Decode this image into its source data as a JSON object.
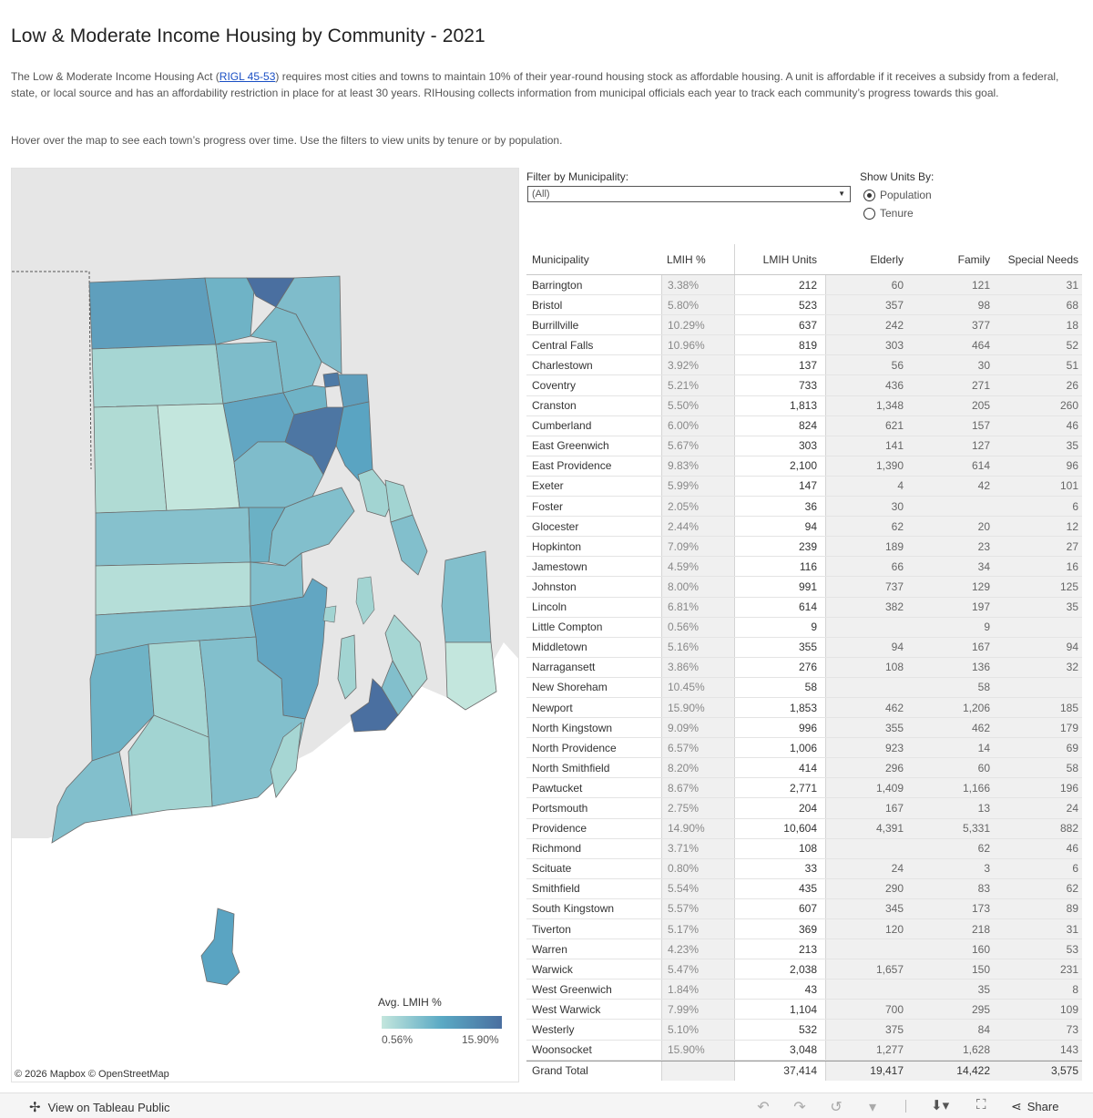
{
  "header": {
    "title": "Low & Moderate Income Housing by Community - 2021",
    "desc_before": "The Low & Moderate Income Housing Act (",
    "desc_link": "RIGL 45-53",
    "desc_after": ") requires most cities and towns to maintain 10% of their year-round housing stock as affordable housing. A unit is affordable if it receives a subsidy from a federal, state, or local source and has an affordability restriction in place for at least 30 years. RIHousing collects information from municipal officials each year to track each community’s progress towards this goal.",
    "hint": "Hover over the map to see each town’s progress over time. Use the filters to view units by tenure or by population."
  },
  "map": {
    "attribution": "© 2026 Mapbox  © OpenStreetMap",
    "legend_title": "Avg. LMIH %",
    "legend_min": "0.56%",
    "legend_max": "15.90%",
    "colors": {
      "low": "#c3e6dd",
      "mid": "#6fb6c9",
      "high": "#4a6fa0"
    }
  },
  "filters": {
    "municipality_label": "Filter by Municipality:",
    "municipality_value": "(All)",
    "units_label": "Show Units By:",
    "options": [
      {
        "label": "Population",
        "selected": true
      },
      {
        "label": "Tenure",
        "selected": false
      }
    ]
  },
  "table": {
    "columns": [
      "Municipality",
      "LMIH %",
      "LMIH Units",
      "Elderly",
      "Family",
      "Special Needs"
    ],
    "rows": [
      [
        "Barrington",
        "3.38%",
        "212",
        "60",
        "121",
        "31"
      ],
      [
        "Bristol",
        "5.80%",
        "523",
        "357",
        "98",
        "68"
      ],
      [
        "Burrillville",
        "10.29%",
        "637",
        "242",
        "377",
        "18"
      ],
      [
        "Central Falls",
        "10.96%",
        "819",
        "303",
        "464",
        "52"
      ],
      [
        "Charlestown",
        "3.92%",
        "137",
        "56",
        "30",
        "51"
      ],
      [
        "Coventry",
        "5.21%",
        "733",
        "436",
        "271",
        "26"
      ],
      [
        "Cranston",
        "5.50%",
        "1,813",
        "1,348",
        "205",
        "260"
      ],
      [
        "Cumberland",
        "6.00%",
        "824",
        "621",
        "157",
        "46"
      ],
      [
        "East Greenwich",
        "5.67%",
        "303",
        "141",
        "127",
        "35"
      ],
      [
        "East Providence",
        "9.83%",
        "2,100",
        "1,390",
        "614",
        "96"
      ],
      [
        "Exeter",
        "5.99%",
        "147",
        "4",
        "42",
        "101"
      ],
      [
        "Foster",
        "2.05%",
        "36",
        "30",
        "",
        "6"
      ],
      [
        "Glocester",
        "2.44%",
        "94",
        "62",
        "20",
        "12"
      ],
      [
        "Hopkinton",
        "7.09%",
        "239",
        "189",
        "23",
        "27"
      ],
      [
        "Jamestown",
        "4.59%",
        "116",
        "66",
        "34",
        "16"
      ],
      [
        "Johnston",
        "8.00%",
        "991",
        "737",
        "129",
        "125"
      ],
      [
        "Lincoln",
        "6.81%",
        "614",
        "382",
        "197",
        "35"
      ],
      [
        "Little Compton",
        "0.56%",
        "9",
        "",
        "9",
        ""
      ],
      [
        "Middletown",
        "5.16%",
        "355",
        "94",
        "167",
        "94"
      ],
      [
        "Narragansett",
        "3.86%",
        "276",
        "108",
        "136",
        "32"
      ],
      [
        "New Shoreham",
        "10.45%",
        "58",
        "",
        "58",
        ""
      ],
      [
        "Newport",
        "15.90%",
        "1,853",
        "462",
        "1,206",
        "185"
      ],
      [
        "North Kingstown",
        "9.09%",
        "996",
        "355",
        "462",
        "179"
      ],
      [
        "North Providence",
        "6.57%",
        "1,006",
        "923",
        "14",
        "69"
      ],
      [
        "North Smithfield",
        "8.20%",
        "414",
        "296",
        "60",
        "58"
      ],
      [
        "Pawtucket",
        "8.67%",
        "2,771",
        "1,409",
        "1,166",
        "196"
      ],
      [
        "Portsmouth",
        "2.75%",
        "204",
        "167",
        "13",
        "24"
      ],
      [
        "Providence",
        "14.90%",
        "10,604",
        "4,391",
        "5,331",
        "882"
      ],
      [
        "Richmond",
        "3.71%",
        "108",
        "",
        "62",
        "46"
      ],
      [
        "Scituate",
        "0.80%",
        "33",
        "24",
        "3",
        "6"
      ],
      [
        "Smithfield",
        "5.54%",
        "435",
        "290",
        "83",
        "62"
      ],
      [
        "South Kingstown",
        "5.57%",
        "607",
        "345",
        "173",
        "89"
      ],
      [
        "Tiverton",
        "5.17%",
        "369",
        "120",
        "218",
        "31"
      ],
      [
        "Warren",
        "4.23%",
        "213",
        "",
        "160",
        "53"
      ],
      [
        "Warwick",
        "5.47%",
        "2,038",
        "1,657",
        "150",
        "231"
      ],
      [
        "West Greenwich",
        "1.84%",
        "43",
        "",
        "35",
        "8"
      ],
      [
        "West Warwick",
        "7.99%",
        "1,104",
        "700",
        "295",
        "109"
      ],
      [
        "Westerly",
        "5.10%",
        "532",
        "375",
        "84",
        "73"
      ],
      [
        "Woonsocket",
        "15.90%",
        "3,048",
        "1,277",
        "1,628",
        "143"
      ]
    ],
    "total": [
      "Grand Total",
      "",
      "37,414",
      "19,417",
      "14,422",
      "3,575"
    ]
  },
  "toolbar": {
    "view_label": "View on Tableau Public",
    "share_label": "Share"
  }
}
